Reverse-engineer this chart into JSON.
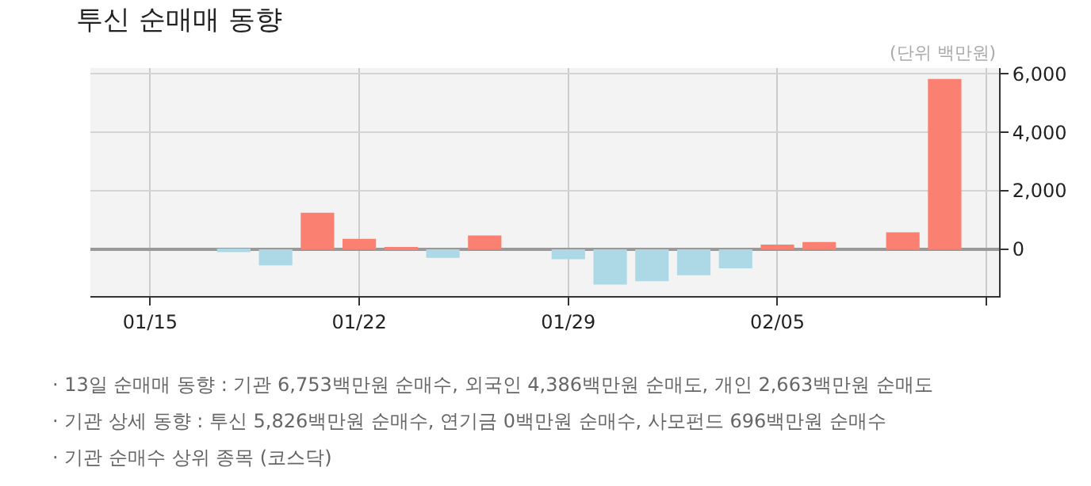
{
  "chart_data": {
    "type": "bar",
    "title": "투신 순매매 동향",
    "categories": [
      "01/15",
      null,
      null,
      null,
      null,
      "01/22",
      null,
      null,
      null,
      null,
      "01/29",
      null,
      null,
      null,
      null,
      "02/05",
      null,
      null,
      null,
      null,
      null
    ],
    "values": [
      null,
      null,
      -100,
      -550,
      1250,
      360,
      70,
      -290,
      470,
      null,
      -340,
      -1210,
      -1090,
      -890,
      -650,
      160,
      250,
      null,
      580,
      5826,
      null
    ],
    "colors": [
      "#fa8072",
      "#fa8072",
      "#add8e6",
      "#add8e6",
      "#fa8072",
      "#fa8072",
      "#fa8072",
      "#add8e6",
      "#fa8072",
      "#fa8072",
      "#add8e6",
      "#add8e6",
      "#add8e6",
      "#add8e6",
      "#add8e6",
      "#fa8072",
      "#fa8072",
      "#fa8072",
      "#fa8072",
      "#fa8072",
      "#fa8072"
    ],
    "ylim": [
      -1600,
      6200
    ],
    "yticks": [
      {
        "value": 0,
        "label": "0"
      },
      {
        "value": 2000,
        "label": "2,000"
      },
      {
        "value": 4000,
        "label": "4,000"
      },
      {
        "value": 6000,
        "label": "6,000"
      }
    ],
    "grid": true,
    "annotations": [
      "(단위 백만원)",
      "· 13일 순매매 동향 : 기관 6,753백만원 순매수, 외국인 4,386백만원 순매도, 개인 2,663백만원 순매도",
      "· 기관 상세 동향 : 투신 5,826백만원 순매수, 연기금 0백만원 순매수, 사모펀드 696백만원 순매수",
      "· 기관 순매수 상위 종목 (코스닥)"
    ]
  }
}
